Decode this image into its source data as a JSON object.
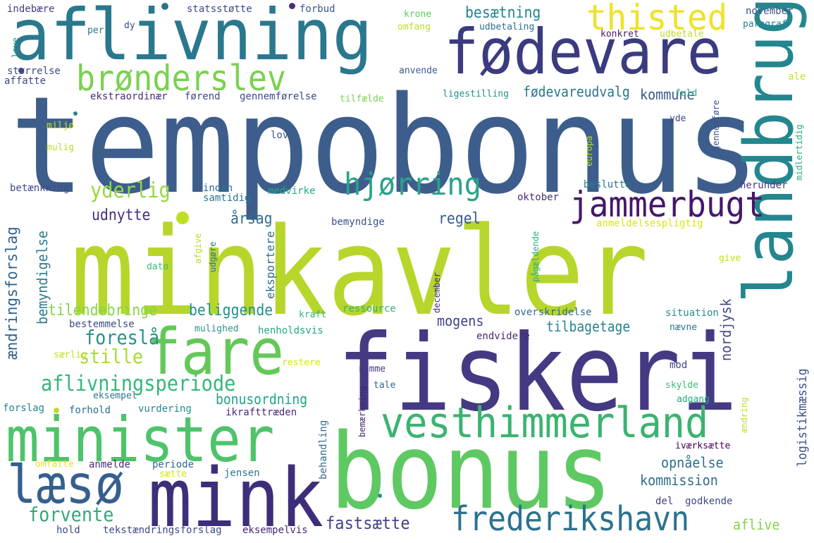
{
  "palette": {
    "dark_purple": "#46166b",
    "indigo": "#3e3f8a",
    "blue": "#3d5e8c",
    "steel": "#34618d",
    "teal": "#22828e",
    "sea": "#2a9289",
    "green": "#3bb371",
    "light_green": "#63c858",
    "lime": "#b6d62b",
    "yellow": "#f1e128"
  },
  "words": [
    {
      "text": "tempobonus",
      "color": "#3d5e8c"
    },
    {
      "text": "minkavler",
      "color": "#b6d62b"
    },
    {
      "text": "fiskeri",
      "color": "#443a83"
    },
    {
      "text": "bonus",
      "color": "#5ec962"
    },
    {
      "text": "aflivning",
      "color": "#2a788e"
    },
    {
      "text": "fødevare",
      "color": "#3b3b80"
    },
    {
      "text": "landbrug",
      "color": "#24868e"
    },
    {
      "text": "mink",
      "color": "#3e2e7a"
    },
    {
      "text": "fare",
      "color": "#63c858"
    },
    {
      "text": "minister",
      "color": "#4ec36b"
    },
    {
      "text": "vesthimmerland",
      "color": "#3bb371"
    },
    {
      "text": "læsø",
      "color": "#355f8d"
    },
    {
      "text": "thisted",
      "color": "#f1e128"
    },
    {
      "text": "jammerbugt",
      "color": "#46166b"
    },
    {
      "text": "brønderslev",
      "color": "#7ad151"
    },
    {
      "text": "frederikshavn",
      "color": "#2c728e"
    },
    {
      "text": "hjørring",
      "color": "#2aa389"
    },
    {
      "text": "aflivningsperiode",
      "color": "#35b779"
    },
    {
      "text": "yderlig",
      "color": "#95d840"
    },
    {
      "text": "stille",
      "color": "#a5db36"
    },
    {
      "text": "foreslå",
      "color": "#2a9289"
    },
    {
      "text": "forvente",
      "color": "#38a778"
    },
    {
      "text": "fastsætte",
      "color": "#414487"
    },
    {
      "text": "ændringsforslag",
      "color": "#33638d"
    },
    {
      "text": "udnytte",
      "color": "#472d7b"
    },
    {
      "text": "beliggende",
      "color": "#21908d"
    },
    {
      "text": "årsag",
      "color": "#2d708e"
    },
    {
      "text": "regel",
      "color": "#365d8d"
    },
    {
      "text": "besætning",
      "color": "#25838e"
    },
    {
      "text": "fødevareudvalg",
      "color": "#2a768e"
    },
    {
      "text": "kommune",
      "color": "#38598c"
    },
    {
      "text": "bemyndigelse",
      "color": "#297b8e"
    },
    {
      "text": "tilendebringe",
      "color": "#84d44b"
    },
    {
      "text": "bonusordning",
      "color": "#20a386"
    },
    {
      "text": "mogens",
      "color": "#414487"
    },
    {
      "text": "tilbagetage",
      "color": "#26828e"
    },
    {
      "text": "nordjysk",
      "color": "#3f4788"
    },
    {
      "text": "logistikmæssig",
      "color": "#3a548c"
    },
    {
      "text": "opnåelse",
      "color": "#2c728e"
    },
    {
      "text": "kommission",
      "color": "#2e6e8e"
    },
    {
      "text": "aflive",
      "color": "#84d44b"
    },
    {
      "text": "indebære",
      "color": "#443b84"
    },
    {
      "text": "statsstøtte",
      "color": "#3f4788"
    },
    {
      "text": "forbud",
      "color": "#3b528b"
    },
    {
      "text": "krone",
      "color": "#5ec962"
    },
    {
      "text": "november",
      "color": "#3a548c"
    },
    {
      "text": "per",
      "color": "#2c728e"
    },
    {
      "text": "dy",
      "color": "#3e4a89"
    },
    {
      "text": "omfang",
      "color": "#bddf26"
    },
    {
      "text": "udbetaling",
      "color": "#2d708e"
    },
    {
      "text": "konkret",
      "color": "#481a6c"
    },
    {
      "text": "udbetale",
      "color": "#bddf26"
    },
    {
      "text": "paragraf",
      "color": "#26828e"
    },
    {
      "text": "leve",
      "color": "#2a9289"
    },
    {
      "text": "størrelse",
      "color": "#3e4989"
    },
    {
      "text": "affatte",
      "color": "#404588"
    },
    {
      "text": "anvende",
      "color": "#365d8d"
    },
    {
      "text": "ale",
      "color": "#c8e020"
    },
    {
      "text": "ekstraordinær",
      "color": "#472d7b"
    },
    {
      "text": "førend",
      "color": "#3f4788"
    },
    {
      "text": "gennemførelse",
      "color": "#3f4788"
    },
    {
      "text": "tilfælde",
      "color": "#7ad151"
    },
    {
      "text": "ligestilling",
      "color": "#21918c"
    },
    {
      "text": "fuld",
      "color": "#27ad81"
    },
    {
      "text": "gennemføre",
      "color": "#3b528b"
    },
    {
      "text": "miljø",
      "color": "#c2df23"
    },
    {
      "text": "mulig",
      "color": "#bddf26"
    },
    {
      "text": "lov",
      "color": "#38598c"
    },
    {
      "text": "yde",
      "color": "#3e4a89"
    },
    {
      "text": "europa",
      "color": "#b8de29"
    },
    {
      "text": "midlertidig",
      "color": "#28ae80"
    },
    {
      "text": "betænkning",
      "color": "#3e4a89"
    },
    {
      "text": "inden",
      "color": "#2d708e"
    },
    {
      "text": "samtidig",
      "color": "#2a768e"
    },
    {
      "text": "medvirke",
      "color": "#22a785"
    },
    {
      "text": "oktober",
      "color": "#472d7b"
    },
    {
      "text": "beslutte",
      "color": "#2a768e"
    },
    {
      "text": "herunder",
      "color": "#443b84"
    },
    {
      "text": "bemyndige",
      "color": "#3b528b"
    },
    {
      "text": "anmeldelsespligtig",
      "color": "#dde318"
    },
    {
      "text": "afgive",
      "color": "#b5de2b"
    },
    {
      "text": "udgøre",
      "color": "#2d708e"
    },
    {
      "text": "eksportere",
      "color": "#2f6b8e"
    },
    {
      "text": "dato",
      "color": "#3aba76"
    },
    {
      "text": "give",
      "color": "#c0df25"
    },
    {
      "text": "pågældende",
      "color": "#27ad81"
    },
    {
      "text": "december",
      "color": "#472d7b"
    },
    {
      "text": "ressource",
      "color": "#2db27d"
    },
    {
      "text": "overskridelse",
      "color": "#31688e"
    },
    {
      "text": "situation",
      "color": "#21918c"
    },
    {
      "text": "kraft",
      "color": "#35b779"
    },
    {
      "text": "bestemmelse",
      "color": "#3e4a89"
    },
    {
      "text": "mulighed",
      "color": "#2a9289"
    },
    {
      "text": "henholdsvis",
      "color": "#23a983"
    },
    {
      "text": "nævne",
      "color": "#2a768e"
    },
    {
      "text": "endvidere",
      "color": "#482878"
    },
    {
      "text": "særlig",
      "color": "#c2df23"
    },
    {
      "text": "restere",
      "color": "#d8e219"
    },
    {
      "text": "ramme",
      "color": "#433e85"
    },
    {
      "text": "mod",
      "color": "#3f4788"
    },
    {
      "text": "tale",
      "color": "#31688e"
    },
    {
      "text": "eksempel",
      "color": "#2a788e"
    },
    {
      "text": "skylde",
      "color": "#3bbb75"
    },
    {
      "text": "forslag",
      "color": "#26828e"
    },
    {
      "text": "forhold",
      "color": "#2c728e"
    },
    {
      "text": "vurdering",
      "color": "#228c8d"
    },
    {
      "text": "ikrafttræden",
      "color": "#482878"
    },
    {
      "text": "adgang",
      "color": "#22a785"
    },
    {
      "text": "bemærkning",
      "color": "#482475"
    },
    {
      "text": "ændring",
      "color": "#bddf26"
    },
    {
      "text": "behandling",
      "color": "#2f6c8e"
    },
    {
      "text": "iværksætte",
      "color": "#440154"
    },
    {
      "text": "omfatte",
      "color": "#e5e419"
    },
    {
      "text": "anmelde",
      "color": "#482878"
    },
    {
      "text": "periode",
      "color": "#31688e"
    },
    {
      "text": "sætte",
      "color": "#d2e21b"
    },
    {
      "text": "jensen",
      "color": "#2a768e"
    },
    {
      "text": "del",
      "color": "#433e85"
    },
    {
      "text": "godkende",
      "color": "#3e4a89"
    },
    {
      "text": "hold",
      "color": "#3e4a89"
    },
    {
      "text": "tekstændringsforslag",
      "color": "#3e4a89"
    },
    {
      "text": "eksempelvis",
      "color": "#482475"
    }
  ],
  "dots": [
    "#2d708e",
    "#472d7b",
    "#bddf26",
    "#3f4788",
    "#bddf26",
    "#26828e",
    "#2a9289"
  ]
}
